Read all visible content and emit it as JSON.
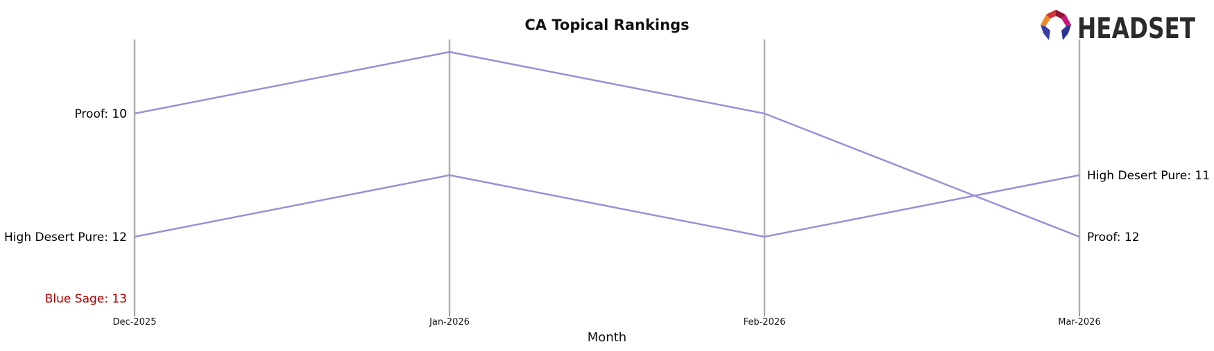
{
  "chart_data": {
    "type": "line",
    "title": "CA Topical Rankings",
    "xlabel": "Month",
    "ylabel": "",
    "categories": [
      "Dec-2025",
      "Jan-2026",
      "Feb-2026",
      "Mar-2026"
    ],
    "y_inverted": true,
    "ylim": [
      8.6,
      13.4
    ],
    "grid": false,
    "series": [
      {
        "name": "Proof",
        "values": [
          10,
          9,
          10,
          12
        ],
        "color": "#9b8fd6"
      },
      {
        "name": "High Desert Pure",
        "values": [
          12,
          11,
          12,
          11
        ],
        "color": "#9b8fd6"
      },
      {
        "name": "Blue Sage",
        "values": [
          13,
          null,
          null,
          null
        ],
        "color": "#b00000"
      }
    ],
    "left_labels": [
      {
        "text": "Proof: 10",
        "rank": 10,
        "color": "#000000"
      },
      {
        "text": "High Desert Pure: 12",
        "rank": 12,
        "color": "#000000"
      },
      {
        "text": "Blue Sage: 13",
        "rank": 13,
        "color": "#b00000"
      }
    ],
    "right_labels": [
      {
        "text": "High Desert Pure: 11",
        "rank": 11,
        "color": "#000000"
      },
      {
        "text": "Proof: 12",
        "rank": 12,
        "color": "#000000"
      }
    ],
    "axis_color": "#b0b0b0",
    "line_color": "#9b8fd6"
  },
  "logo": {
    "text": "HEADSET",
    "icon": "headset-logo-icon"
  }
}
